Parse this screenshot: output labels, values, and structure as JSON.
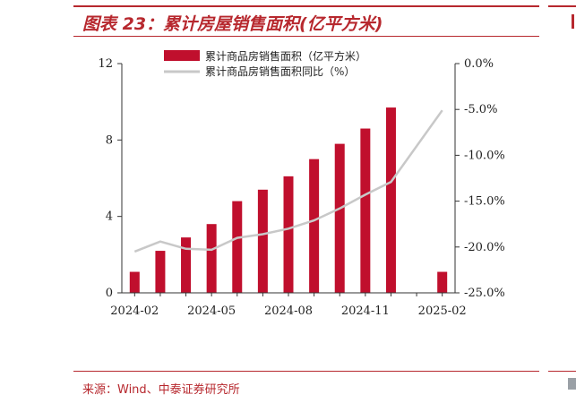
{
  "title": "图表 23：累计房屋销售面积(亿平方米)",
  "source": "来源：Wind、中泰证券研究所",
  "chart_data": {
    "type": "bar",
    "x": [
      "2024-02",
      "2024-03",
      "2024-04",
      "2024-05",
      "2024-06",
      "2024-07",
      "2024-08",
      "2024-09",
      "2024-10",
      "2024-11",
      "2024-12",
      "2025-01",
      "2025-02"
    ],
    "x_tick_labels": [
      "2024-02",
      "2024-05",
      "2024-08",
      "2024-11",
      "2025-02"
    ],
    "series": [
      {
        "name": "累计商品房销售面积（亿平方米）",
        "type": "bar",
        "axis": "left",
        "color": "#c00f2d",
        "values": [
          1.1,
          2.2,
          2.9,
          3.6,
          4.8,
          5.4,
          6.1,
          7.0,
          7.8,
          8.6,
          9.7,
          null,
          1.1
        ]
      },
      {
        "name": "累计商品房销售面积同比（%）",
        "type": "line",
        "axis": "right",
        "color": "#c8c8c8",
        "values": [
          -20.5,
          -19.4,
          -20.2,
          -20.3,
          -19.0,
          -18.6,
          -18.0,
          -17.1,
          -15.8,
          -14.3,
          -12.9,
          null,
          -5.1
        ]
      }
    ],
    "y_left": {
      "ylim": [
        0,
        12
      ],
      "ticks": [
        0,
        4,
        8,
        12
      ],
      "tick_labels": [
        "0",
        "4",
        "8",
        "12"
      ]
    },
    "y_right": {
      "ylim": [
        -25,
        0
      ],
      "ticks": [
        0,
        -5,
        -10,
        -15,
        -20,
        -25
      ],
      "tick_labels": [
        "0.0%",
        "-5.0%",
        "-10.0%",
        "-15.0%",
        "-20.0%",
        "-25.0%"
      ]
    },
    "legend_position": "top",
    "grid": false
  }
}
